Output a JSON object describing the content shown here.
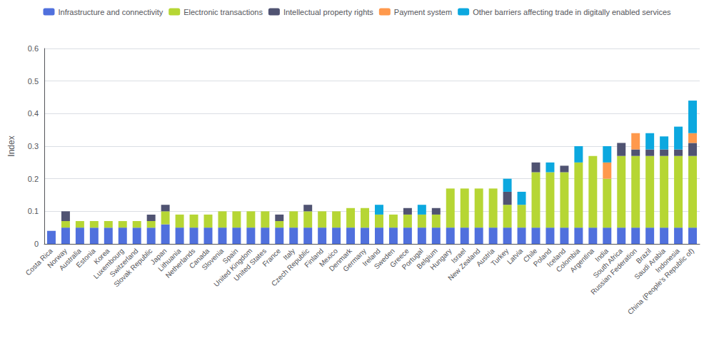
{
  "chart_data": {
    "type": "bar",
    "stacked": true,
    "ylabel": "Index",
    "categories": [
      "Costa Rica",
      "Norway",
      "Australia",
      "Estonia",
      "Korea",
      "Luxembourg",
      "Switzerland",
      "Slovak Republic",
      "Japan",
      "Lithuania",
      "Netherlands",
      "Canada",
      "Slovenia",
      "Spain",
      "United Kingdom",
      "United States",
      "France",
      "Italy",
      "Czech Republic",
      "Finland",
      "Mexico",
      "Denmark",
      "Germany",
      "Ireland",
      "Sweden",
      "Greece",
      "Portugal",
      "Belgium",
      "Hungary",
      "Israel",
      "New Zealand",
      "Austria",
      "Turkey",
      "Latvia",
      "Chile",
      "Poland",
      "Iceland",
      "Colombia",
      "Argentina",
      "India",
      "South Africa",
      "Russian Federation",
      "Brazil",
      "Saudi Arabia",
      "Indonesia",
      "China (People's Republic of)"
    ],
    "series": [
      {
        "name": "Infrastructure and connectivity",
        "values": [
          0.04,
          0.05,
          0.05,
          0.05,
          0.05,
          0.05,
          0.05,
          0.05,
          0.06,
          0.05,
          0.05,
          0.05,
          0.05,
          0.05,
          0.05,
          0.05,
          0.05,
          0.05,
          0.05,
          0.05,
          0.05,
          0.05,
          0.05,
          0.05,
          0.05,
          0.05,
          0.05,
          0.05,
          0.05,
          0.05,
          0.05,
          0.05,
          0.05,
          0.05,
          0.05,
          0.05,
          0.05,
          0.05,
          0.05,
          0.05,
          0.05,
          0.05,
          0.05,
          0.05,
          0.05,
          0.05
        ]
      },
      {
        "name": "Electronic transactions",
        "values": [
          0.0,
          0.02,
          0.02,
          0.02,
          0.02,
          0.02,
          0.02,
          0.02,
          0.04,
          0.04,
          0.04,
          0.04,
          0.05,
          0.05,
          0.05,
          0.05,
          0.02,
          0.05,
          0.05,
          0.05,
          0.05,
          0.06,
          0.06,
          0.04,
          0.04,
          0.04,
          0.04,
          0.04,
          0.12,
          0.12,
          0.12,
          0.12,
          0.07,
          0.07,
          0.17,
          0.17,
          0.17,
          0.2,
          0.22,
          0.15,
          0.22,
          0.22,
          0.22,
          0.22,
          0.22,
          0.22
        ]
      },
      {
        "name": "Intellectual property rights",
        "values": [
          0.0,
          0.03,
          0.0,
          0.0,
          0.0,
          0.0,
          0.0,
          0.02,
          0.02,
          0.0,
          0.0,
          0.0,
          0.0,
          0.0,
          0.0,
          0.0,
          0.02,
          0.0,
          0.02,
          0.0,
          0.0,
          0.0,
          0.0,
          0.0,
          0.0,
          0.02,
          0.0,
          0.02,
          0.0,
          0.0,
          0.0,
          0.0,
          0.04,
          0.0,
          0.03,
          0.0,
          0.02,
          0.0,
          0.0,
          0.0,
          0.04,
          0.02,
          0.02,
          0.02,
          0.02,
          0.04
        ]
      },
      {
        "name": "Payment system",
        "values": [
          0.0,
          0.0,
          0.0,
          0.0,
          0.0,
          0.0,
          0.0,
          0.0,
          0.0,
          0.0,
          0.0,
          0.0,
          0.0,
          0.0,
          0.0,
          0.0,
          0.0,
          0.0,
          0.0,
          0.0,
          0.0,
          0.0,
          0.0,
          0.0,
          0.0,
          0.0,
          0.0,
          0.0,
          0.0,
          0.0,
          0.0,
          0.0,
          0.0,
          0.0,
          0.0,
          0.0,
          0.0,
          0.0,
          0.0,
          0.05,
          0.0,
          0.05,
          0.0,
          0.0,
          0.0,
          0.03
        ]
      },
      {
        "name": "Other barriers affecting trade in digitally enabled services",
        "values": [
          0.0,
          0.0,
          0.0,
          0.0,
          0.0,
          0.0,
          0.0,
          0.0,
          0.0,
          0.0,
          0.0,
          0.0,
          0.0,
          0.0,
          0.0,
          0.0,
          0.0,
          0.0,
          0.0,
          0.0,
          0.0,
          0.0,
          0.0,
          0.03,
          0.0,
          0.0,
          0.03,
          0.0,
          0.0,
          0.0,
          0.0,
          0.0,
          0.04,
          0.04,
          0.0,
          0.03,
          0.0,
          0.05,
          0.0,
          0.05,
          0.0,
          0.0,
          0.05,
          0.04,
          0.07,
          0.1
        ]
      }
    ],
    "ylim": [
      0,
      0.6
    ],
    "yticks": [
      0,
      0.1,
      0.2,
      0.3,
      0.4,
      0.5,
      0.6
    ],
    "grid": true
  }
}
